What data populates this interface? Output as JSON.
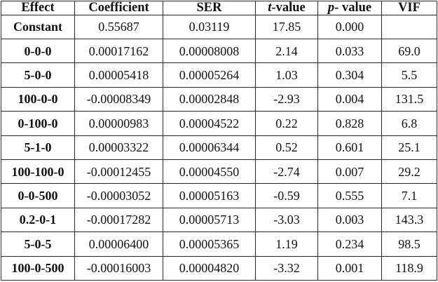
{
  "table": {
    "headers": {
      "effect": "Effect",
      "coefficient": "Coefficient",
      "ser": "SER",
      "t_value_t": "t",
      "t_value_rest": "-value",
      "p_value_p": "p",
      "p_value_rest": "- value",
      "vif": "VIF"
    },
    "rows": [
      [
        "Constant",
        "0.55687",
        "0.03119",
        "17.85",
        "0.000",
        ""
      ],
      [
        "0-0-0",
        "0.00017162",
        "0.00008008",
        "2.14",
        "0.033",
        "69.0"
      ],
      [
        "5-0-0",
        "0.00005418",
        "0.00005264",
        "1.03",
        "0.304",
        "5.5"
      ],
      [
        "100-0-0",
        "-0.00008349",
        "0.00002848",
        "-2.93",
        "0.004",
        "131.5"
      ],
      [
        "0-100-0",
        "0.00000983",
        "0.00004522",
        "0.22",
        "0.828",
        "6.8"
      ],
      [
        "5-1-0",
        "0.00003322",
        "0.00006344",
        "0.52",
        "0.601",
        "25.1"
      ],
      [
        "100-100-0",
        "-0.00012455",
        "0.00004550",
        "-2.74",
        "0.007",
        "29.2"
      ],
      [
        "0-0-500",
        "-0.00003052",
        "0.00005163",
        "-0.59",
        "0.555",
        "7.1"
      ],
      [
        "0.2-0-1",
        "-0.00017282",
        "0.00005713",
        "-3.03",
        "0.003",
        "143.3"
      ],
      [
        "5-0-5",
        "0.00006400",
        "0.00005365",
        "1.19",
        "0.234",
        "98.5"
      ],
      [
        "100-0-500",
        "-0.00016003",
        "0.00004820",
        "-3.32",
        "0.001",
        "118.9"
      ]
    ]
  }
}
